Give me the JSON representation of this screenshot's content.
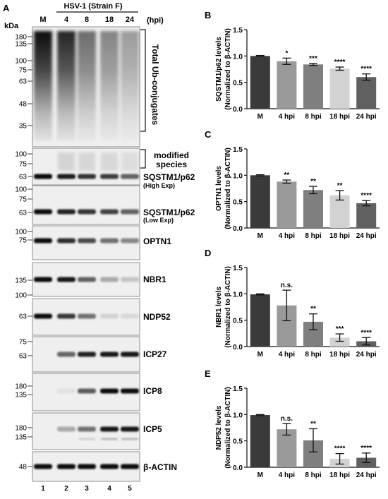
{
  "panel_labels": {
    "A": "A",
    "B": "B",
    "C": "C",
    "D": "D",
    "E": "E"
  },
  "blot": {
    "virus_label": "HSV-1 (Strain F)",
    "time_unit": "(hpi)",
    "lane_headers": [
      "M",
      "4",
      "8",
      "18",
      "24"
    ],
    "lane_numbers": [
      "1",
      "2",
      "3",
      "4",
      "5"
    ],
    "kda_label": "kDa",
    "strips": [
      {
        "id": "ubiq",
        "markers": [
          "180",
          "135",
          "100",
          "75",
          "63",
          "48",
          "35"
        ],
        "right_label": "Total\nUb-conjugates",
        "intensities": [
          0.95,
          0.85,
          0.55,
          0.45,
          0.35
        ]
      },
      {
        "id": "p62high",
        "markers": [
          "100",
          "75",
          "63"
        ],
        "right_label": "SQSTM1/p62",
        "sub_label": "(High Exp)",
        "bracket_label": "modified\nspecies",
        "intensities": [
          1,
          0.92,
          0.82,
          0.78,
          0.62
        ]
      },
      {
        "id": "p62low",
        "markers": [
          "100",
          "75",
          "63"
        ],
        "right_label": "SQSTM1/p62",
        "sub_label": "(Low Exp)",
        "intensities": [
          1,
          0.9,
          0.82,
          0.76,
          0.62
        ]
      },
      {
        "id": "optn1",
        "markers": [
          "100",
          "75"
        ],
        "right_label": "OPTN1",
        "intensities": [
          1,
          0.85,
          0.72,
          0.55,
          0.45
        ]
      },
      {
        "id": "nbr1",
        "markers": [
          "135",
          "100"
        ],
        "right_label": "NBR1",
        "intensities": [
          1,
          0.95,
          0.62,
          0.3,
          0.18
        ]
      },
      {
        "id": "ndp52",
        "markers": [
          "63"
        ],
        "right_label": "NDP52",
        "intensities": [
          1,
          0.8,
          0.55,
          0.12,
          0.1
        ]
      },
      {
        "id": "icp27",
        "markers": [
          "75",
          "63"
        ],
        "right_label": "ICP27",
        "intensities": [
          0,
          0.6,
          0.9,
          0.95,
          0.95
        ]
      },
      {
        "id": "icp8",
        "markers": [
          "180",
          "135"
        ],
        "right_label": "ICP8",
        "intensities": [
          0,
          0.05,
          0.65,
          1,
          1
        ]
      },
      {
        "id": "icp5",
        "markers": [
          "180",
          "135"
        ],
        "right_label": "ICP5",
        "intensities": [
          0,
          0.3,
          0.55,
          0.95,
          0.95
        ]
      },
      {
        "id": "actin",
        "markers": [
          "48"
        ],
        "right_label": "β-ACTIN",
        "intensities": [
          1,
          1,
          1,
          1,
          1
        ]
      }
    ]
  },
  "chart_data": [
    {
      "type": "bar",
      "panel": "B",
      "categories": [
        "M",
        "4 hpi",
        "8 hpi",
        "18 hpi",
        "24 hpi"
      ],
      "values": [
        1.0,
        0.9,
        0.84,
        0.76,
        0.6
      ],
      "errors": [
        0.01,
        0.06,
        0.02,
        0.03,
        0.06
      ],
      "significance": [
        "",
        "*",
        "***",
        "****",
        "****"
      ],
      "ylabel": "SQSTM1/p62 levels",
      "ylabel2": "(Normalized to β-ACTIN)",
      "ylim": [
        0,
        1.5
      ],
      "yticks": [
        "0.0",
        "0.5",
        "1.0",
        "1.5"
      ],
      "colors": [
        "#3a3a3a",
        "#9a9a9a",
        "#7f7f7f",
        "#d2d2d2",
        "#606060"
      ]
    },
    {
      "type": "bar",
      "panel": "C",
      "categories": [
        "M",
        "4 hpi",
        "8 hpi",
        "18 hpi",
        "24 hpi"
      ],
      "values": [
        1.0,
        0.88,
        0.72,
        0.62,
        0.47
      ],
      "errors": [
        0.01,
        0.03,
        0.07,
        0.09,
        0.05
      ],
      "significance": [
        "",
        "**",
        "**",
        "**",
        "****"
      ],
      "ylabel": "OPTN1 levels",
      "ylabel2": "(Normalized to β-ACTIN)",
      "ylim": [
        0,
        1.5
      ],
      "yticks": [
        "0.0",
        "0.5",
        "1.0",
        "1.5"
      ],
      "colors": [
        "#3a3a3a",
        "#9a9a9a",
        "#7f7f7f",
        "#d2d2d2",
        "#606060"
      ]
    },
    {
      "type": "bar",
      "panel": "D",
      "categories": [
        "M",
        "4 hpi",
        "8 hpi",
        "18 hpi",
        "24 hpi"
      ],
      "values": [
        0.99,
        0.78,
        0.47,
        0.17,
        0.1
      ],
      "errors": [
        0.01,
        0.29,
        0.15,
        0.07,
        0.07
      ],
      "significance": [
        "",
        "n.s.",
        "**",
        "***",
        "****"
      ],
      "ylabel": "NBR1 levels",
      "ylabel2": "(Normalized to β-ACTIN)",
      "ylim": [
        0,
        1.5
      ],
      "yticks": [
        "0.0",
        "0.5",
        "1.0",
        "1.5"
      ],
      "colors": [
        "#3a3a3a",
        "#9a9a9a",
        "#7f7f7f",
        "#d2d2d2",
        "#606060"
      ]
    },
    {
      "type": "bar",
      "panel": "E",
      "categories": [
        "M",
        "4 hpi",
        "8 hpi",
        "18 hpi",
        "24 hpi"
      ],
      "values": [
        0.99,
        0.72,
        0.51,
        0.16,
        0.18
      ],
      "errors": [
        0.01,
        0.11,
        0.22,
        0.1,
        0.09
      ],
      "significance": [
        "",
        "n.s.",
        "**",
        "****",
        "****"
      ],
      "ylabel": "NDP52 levels",
      "ylabel2": "(Normalized to β-ACTIN)",
      "ylim": [
        0,
        1.5
      ],
      "yticks": [
        "0.0",
        "0.5",
        "1.0",
        "1.5"
      ],
      "colors": [
        "#3a3a3a",
        "#9a9a9a",
        "#7f7f7f",
        "#d2d2d2",
        "#606060"
      ]
    }
  ]
}
